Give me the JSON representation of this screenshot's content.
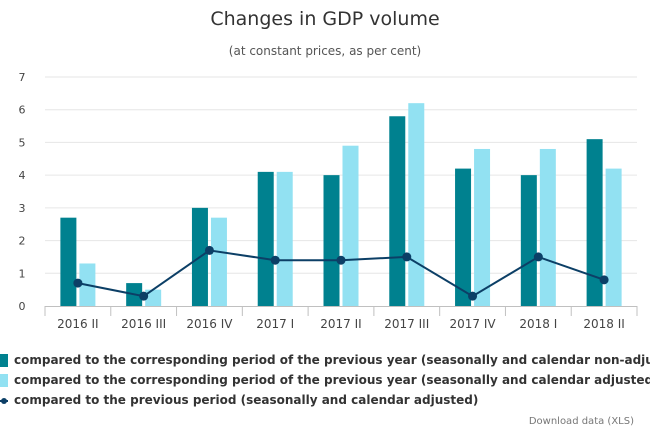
{
  "title": "Changes in GDP volume",
  "subtitle": "(at constant prices, as per cent)",
  "download_label": "Download data (XLS)",
  "colors": {
    "series_nonadjusted": "#00818f",
    "series_adjusted": "#92e1f2",
    "series_previous": "#0c3f66",
    "gridline": "#e6e6e6",
    "axis": "#c0c0c0"
  },
  "chart_data": {
    "type": "bar",
    "title": "Changes in GDP volume",
    "subtitle": "(at constant prices, as per cent)",
    "xlabel": "",
    "ylabel": "",
    "ylim": [
      0,
      7
    ],
    "yticks": [
      0,
      1,
      2,
      3,
      4,
      5,
      6,
      7
    ],
    "grid": true,
    "legend": "bottom",
    "categories": [
      "2016 II",
      "2016 III",
      "2016 IV",
      "2017 I",
      "2017 II",
      "2017 III",
      "2017 IV",
      "2018 I",
      "2018 II"
    ],
    "series": [
      {
        "name": "compared to the corresponding period of the previous year (seasonally and calendar non-adjusted)",
        "type": "bar",
        "values": [
          2.7,
          0.7,
          3.0,
          4.1,
          4.0,
          5.8,
          4.2,
          4.0,
          5.1
        ]
      },
      {
        "name": "compared to the corresponding period of the previous year (seasonally and calendar adjusted)",
        "type": "bar",
        "values": [
          1.3,
          0.5,
          2.7,
          4.1,
          4.9,
          6.2,
          4.8,
          4.8,
          4.2
        ]
      },
      {
        "name": "compared to the previous period (seasonally and calendar adjusted)",
        "type": "line",
        "values": [
          0.7,
          0.3,
          1.7,
          1.4,
          1.4,
          1.5,
          0.3,
          1.5,
          0.8
        ]
      }
    ]
  }
}
